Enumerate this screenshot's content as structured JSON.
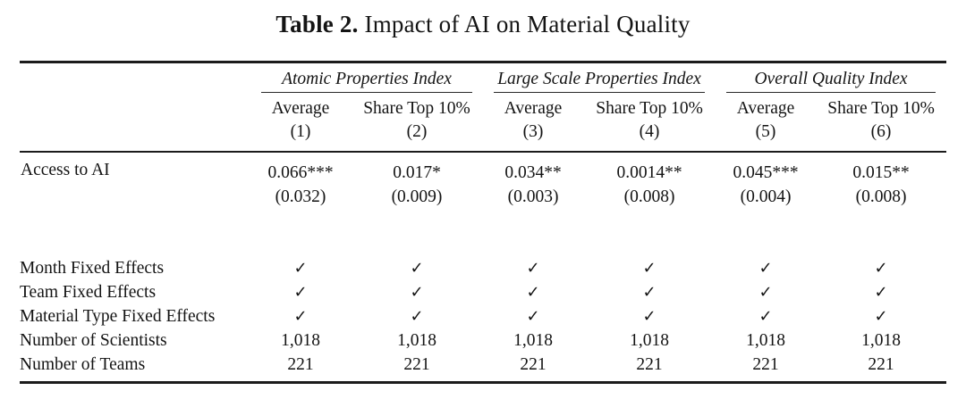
{
  "title": {
    "label": "Table 2.",
    "caption": "Impact of AI on Material Quality"
  },
  "colors": {
    "text": "#141414",
    "background": "#ffffff",
    "rule": "#1b1b1b"
  },
  "table": {
    "groups": [
      {
        "label": "Atomic Properties Index"
      },
      {
        "label": "Large Scale Properties Index"
      },
      {
        "label": "Overall Quality Index"
      }
    ],
    "subheaders": [
      {
        "label": "Average",
        "number": "(1)"
      },
      {
        "label": "Share Top 10%",
        "number": "(2)"
      },
      {
        "label": "Average",
        "number": "(3)"
      },
      {
        "label": "Share Top 10%",
        "number": "(4)"
      },
      {
        "label": "Average",
        "number": "(5)"
      },
      {
        "label": "Share Top 10%",
        "number": "(6)"
      }
    ],
    "coef_row": {
      "label": "Access to AI",
      "cells": [
        {
          "coef": "0.066***",
          "se": "(0.032)"
        },
        {
          "coef": "0.017*",
          "se": "(0.009)"
        },
        {
          "coef": "0.034**",
          "se": "(0.003)"
        },
        {
          "coef": "0.0014**",
          "se": "(0.008)"
        },
        {
          "coef": "0.045***",
          "se": "(0.004)"
        },
        {
          "coef": "0.015**",
          "se": "(0.008)"
        }
      ]
    },
    "bottom_rows": [
      {
        "label": "Month Fixed Effects",
        "values": [
          "✓",
          "✓",
          "✓",
          "✓",
          "✓",
          "✓"
        ]
      },
      {
        "label": "Team Fixed Effects",
        "values": [
          "✓",
          "✓",
          "✓",
          "✓",
          "✓",
          "✓"
        ]
      },
      {
        "label": "Material Type Fixed Effects",
        "values": [
          "✓",
          "✓",
          "✓",
          "✓",
          "✓",
          "✓"
        ]
      },
      {
        "label": "Number of Scientists",
        "values": [
          "1,018",
          "1,018",
          "1,018",
          "1,018",
          "1,018",
          "1,018"
        ]
      },
      {
        "label": "Number of Teams",
        "values": [
          "221",
          "221",
          "221",
          "221",
          "221",
          "221"
        ]
      }
    ]
  }
}
